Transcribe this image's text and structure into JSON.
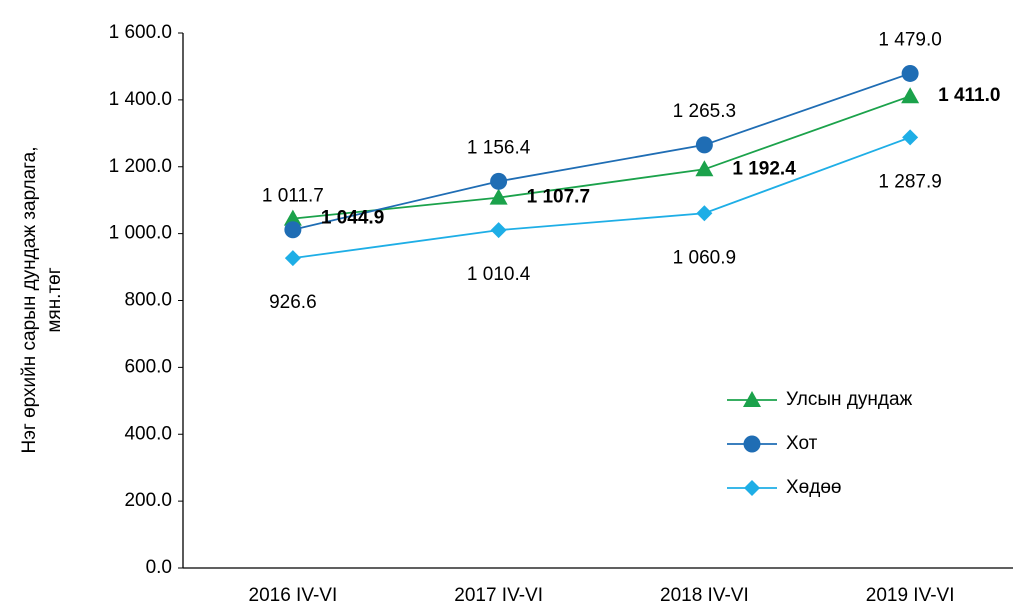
{
  "chart_data": {
    "type": "line",
    "ylabel": [
      "Нэг өрхийн сарын дундаж зарлага,",
      "мян.төг"
    ],
    "categories": [
      "2016 IV-VI",
      "2017 IV-VI",
      "2018 IV-VI",
      "2019 IV-VI"
    ],
    "series": [
      {
        "name": "Улсын дундаж",
        "color": "#1ba24b",
        "marker": "triangle",
        "values": [
          1044.9,
          1107.7,
          1192.4,
          1411.0
        ],
        "value_labels": [
          "1 044.9",
          "1 107.7",
          "1 192.4",
          "1 411.0"
        ]
      },
      {
        "name": "Хот",
        "color": "#1f6db4",
        "marker": "circle",
        "values": [
          1011.7,
          1156.4,
          1265.3,
          1479.0
        ],
        "value_labels": [
          "1 011.7",
          "1 156.4",
          "1 265.3",
          "1 479.0"
        ]
      },
      {
        "name": "Хөдөө",
        "color": "#1eaee6",
        "marker": "diamond",
        "values": [
          926.6,
          1010.4,
          1060.9,
          1287.9
        ],
        "value_labels": [
          "926.6",
          "1 010.4",
          "1 060.9",
          "1 287.9"
        ]
      }
    ],
    "ylim": [
      0,
      1600
    ],
    "yticks": [
      {
        "value": 0,
        "label": "0.0"
      },
      {
        "value": 200,
        "label": "200.0"
      },
      {
        "value": 400,
        "label": "400.0"
      },
      {
        "value": 600,
        "label": "600.0"
      },
      {
        "value": 800,
        "label": "800.0"
      },
      {
        "value": 1000,
        "label": "1 000.0"
      },
      {
        "value": 1200,
        "label": "1 200.0"
      },
      {
        "value": 1400,
        "label": "1 400.0"
      },
      {
        "value": 1600,
        "label": "1 600.0"
      }
    ],
    "grid": false,
    "legend": "lower right"
  }
}
